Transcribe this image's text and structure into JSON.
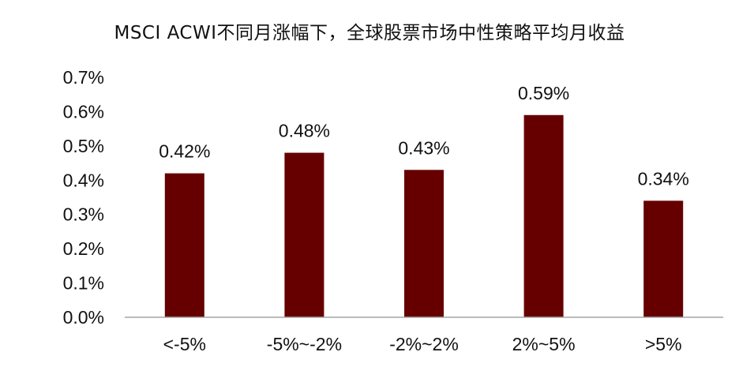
{
  "chart_data": {
    "type": "bar",
    "title": "MSCI ACWI不同月涨幅下，全球股票市场中性策略平均月收益",
    "categories": [
      "<-5%",
      "-5%~-2%",
      "-2%~2%",
      "2%~5%",
      ">5%"
    ],
    "values": [
      0.42,
      0.48,
      0.43,
      0.59,
      0.34
    ],
    "data_labels": [
      "0.42%",
      "0.48%",
      "0.43%",
      "0.59%",
      "0.34%"
    ],
    "y_ticks": [
      0.0,
      0.1,
      0.2,
      0.3,
      0.4,
      0.5,
      0.6,
      0.7
    ],
    "y_tick_labels": [
      "0.0%",
      "0.1%",
      "0.2%",
      "0.3%",
      "0.4%",
      "0.5%",
      "0.6%",
      "0.7%"
    ],
    "ylim": [
      0,
      0.7
    ],
    "xlabel": "",
    "ylabel": "",
    "grid": false,
    "bar_color": "#660000"
  }
}
